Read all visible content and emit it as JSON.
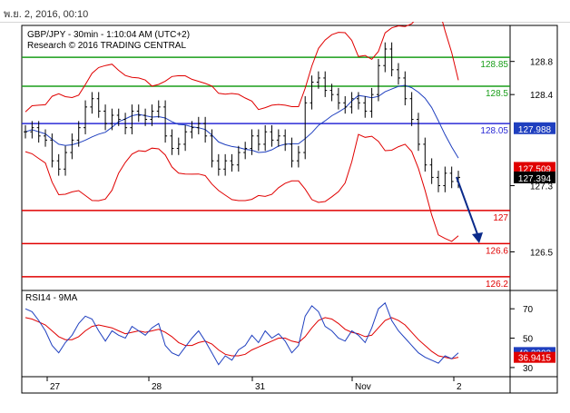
{
  "header": {
    "datetime": "พ.ย. 2, 2016, 00:10"
  },
  "chart": {
    "title": "GBP/JPY - 30min - 1:10:04 AM (UTC+2)",
    "subtitle": "Research © 2016 TRADING CENTRAL"
  },
  "price_axis_ticks": [
    "128.8",
    "128.4",
    "127.3",
    "126.5"
  ],
  "levels": [
    {
      "label": "128.85",
      "value": 128.85,
      "color": "#1a9e1a"
    },
    {
      "label": "128.5",
      "value": 128.5,
      "color": "#1a9e1a"
    },
    {
      "label": "128.05",
      "value": 128.05,
      "color": "#2b2bd6"
    },
    {
      "label": "127",
      "value": 127.0,
      "color": "#e00000"
    },
    {
      "label": "126.6",
      "value": 126.6,
      "color": "#e00000"
    },
    {
      "label": "126.2",
      "value": 126.2,
      "color": "#e00000"
    }
  ],
  "price_badges": [
    {
      "label": "127.988",
      "value": 127.988,
      "bg": "#1f3fbf"
    },
    {
      "label": "127.509",
      "value": 127.509,
      "bg": "#e00000"
    },
    {
      "label": "127.394",
      "value": 127.394,
      "bg": "#000000"
    }
  ],
  "rsi": {
    "title": "RSI14 - 9MA",
    "ticks": [
      "70",
      "50",
      "30"
    ],
    "badges": [
      {
        "label": "40.2203",
        "value": 40.2203,
        "bg": "#1f3fbf"
      },
      {
        "label": "36.9415",
        "value": 36.9415,
        "bg": "#e00000"
      }
    ]
  },
  "x_axis_labels": [
    "27",
    "28",
    "31",
    "Nov",
    "2"
  ],
  "colors": {
    "upper_band": "#e00000",
    "lower_band": "#e00000",
    "moving_average": "#1f3fbf",
    "candles": "#000000",
    "arrow": "#0a2a8a",
    "rsi_line": "#1f3fbf",
    "rsi_ma": "#e00000"
  },
  "chart_data": {
    "type": "line",
    "title": "GBP/JPY - 30min - 1:10:04 AM (UTC+2)",
    "x": [
      "27",
      "28",
      "31",
      "Nov",
      "2"
    ],
    "ylim": [
      126.1,
      129.3
    ],
    "close_series": [
      127.95,
      128.0,
      127.9,
      127.85,
      127.6,
      127.5,
      127.7,
      127.85,
      128.0,
      128.25,
      128.35,
      128.2,
      128.05,
      128.15,
      128.1,
      128.0,
      128.2,
      128.15,
      128.1,
      128.2,
      128.25,
      127.9,
      127.75,
      127.8,
      127.95,
      128.0,
      128.05,
      127.9,
      127.6,
      127.5,
      127.6,
      127.55,
      127.7,
      127.75,
      127.9,
      127.8,
      127.95,
      127.85,
      127.9,
      127.8,
      127.6,
      127.7,
      128.3,
      128.55,
      128.6,
      128.45,
      128.4,
      128.3,
      128.25,
      128.35,
      128.3,
      128.2,
      128.4,
      128.75,
      128.95,
      128.7,
      128.6,
      128.35,
      128.1,
      127.8,
      127.55,
      127.4,
      127.3,
      127.45,
      127.35,
      127.4
    ],
    "rsi_ylim": [
      25,
      80
    ],
    "rsi_series": [
      70,
      68,
      62,
      55,
      45,
      40,
      47,
      52,
      60,
      65,
      63,
      55,
      48,
      55,
      52,
      50,
      58,
      55,
      52,
      57,
      60,
      45,
      40,
      38,
      44,
      50,
      55,
      48,
      40,
      32,
      38,
      35,
      42,
      45,
      52,
      47,
      55,
      50,
      53,
      48,
      40,
      45,
      65,
      72,
      68,
      58,
      55,
      50,
      48,
      55,
      52,
      47,
      57,
      70,
      74,
      62,
      55,
      50,
      45,
      40,
      37,
      35,
      33,
      38,
      36,
      40
    ],
    "rsi_ma_series": [
      64,
      63,
      61,
      59,
      55,
      51,
      49,
      49,
      51,
      55,
      58,
      59,
      58,
      57,
      55,
      53,
      54,
      55,
      54,
      55,
      56,
      54,
      51,
      47,
      45,
      45,
      47,
      48,
      46,
      42,
      39,
      38,
      38,
      39,
      42,
      44,
      46,
      48,
      50,
      50,
      48,
      47,
      51,
      57,
      62,
      64,
      63,
      60,
      56,
      54,
      53,
      51,
      52,
      57,
      62,
      64,
      62,
      59,
      54,
      49,
      45,
      41,
      38,
      37,
      36,
      37
    ]
  }
}
